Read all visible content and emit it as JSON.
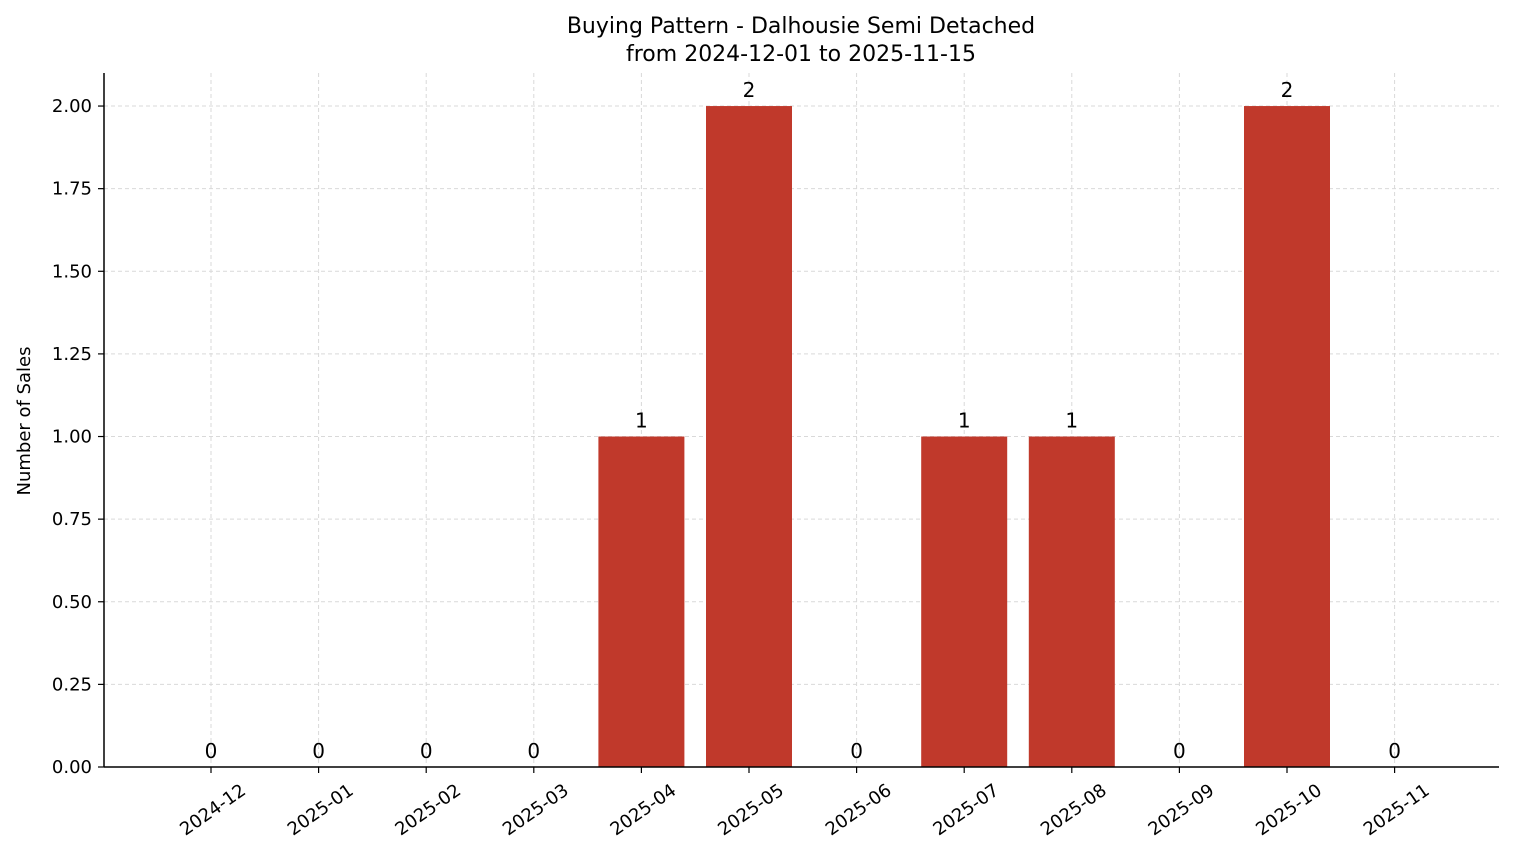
{
  "chart_data": {
    "type": "bar",
    "title": "Buying Pattern - Dalhousie Semi Detached",
    "subtitle": "from 2024-12-01 to 2025-11-15",
    "xlabel": "",
    "ylabel": "Number of Sales",
    "categories": [
      "2024-12",
      "2025-01",
      "2025-02",
      "2025-03",
      "2025-04",
      "2025-05",
      "2025-06",
      "2025-07",
      "2025-08",
      "2025-09",
      "2025-10",
      "2025-11"
    ],
    "values": [
      0,
      0,
      0,
      0,
      1,
      2,
      0,
      1,
      1,
      0,
      2,
      0
    ],
    "value_labels": [
      "0",
      "0",
      "0",
      "0",
      "1",
      "2",
      "0",
      "1",
      "1",
      "0",
      "2",
      "0"
    ],
    "ylim": [
      0,
      2.1
    ],
    "yticks": [
      0.0,
      0.25,
      0.5,
      0.75,
      1.0,
      1.25,
      1.5,
      1.75,
      2.0
    ],
    "ytick_labels": [
      "0.00",
      "0.25",
      "0.50",
      "0.75",
      "1.00",
      "1.25",
      "1.50",
      "1.75",
      "2.00"
    ],
    "bar_color": "#c0392b",
    "grid": true
  }
}
